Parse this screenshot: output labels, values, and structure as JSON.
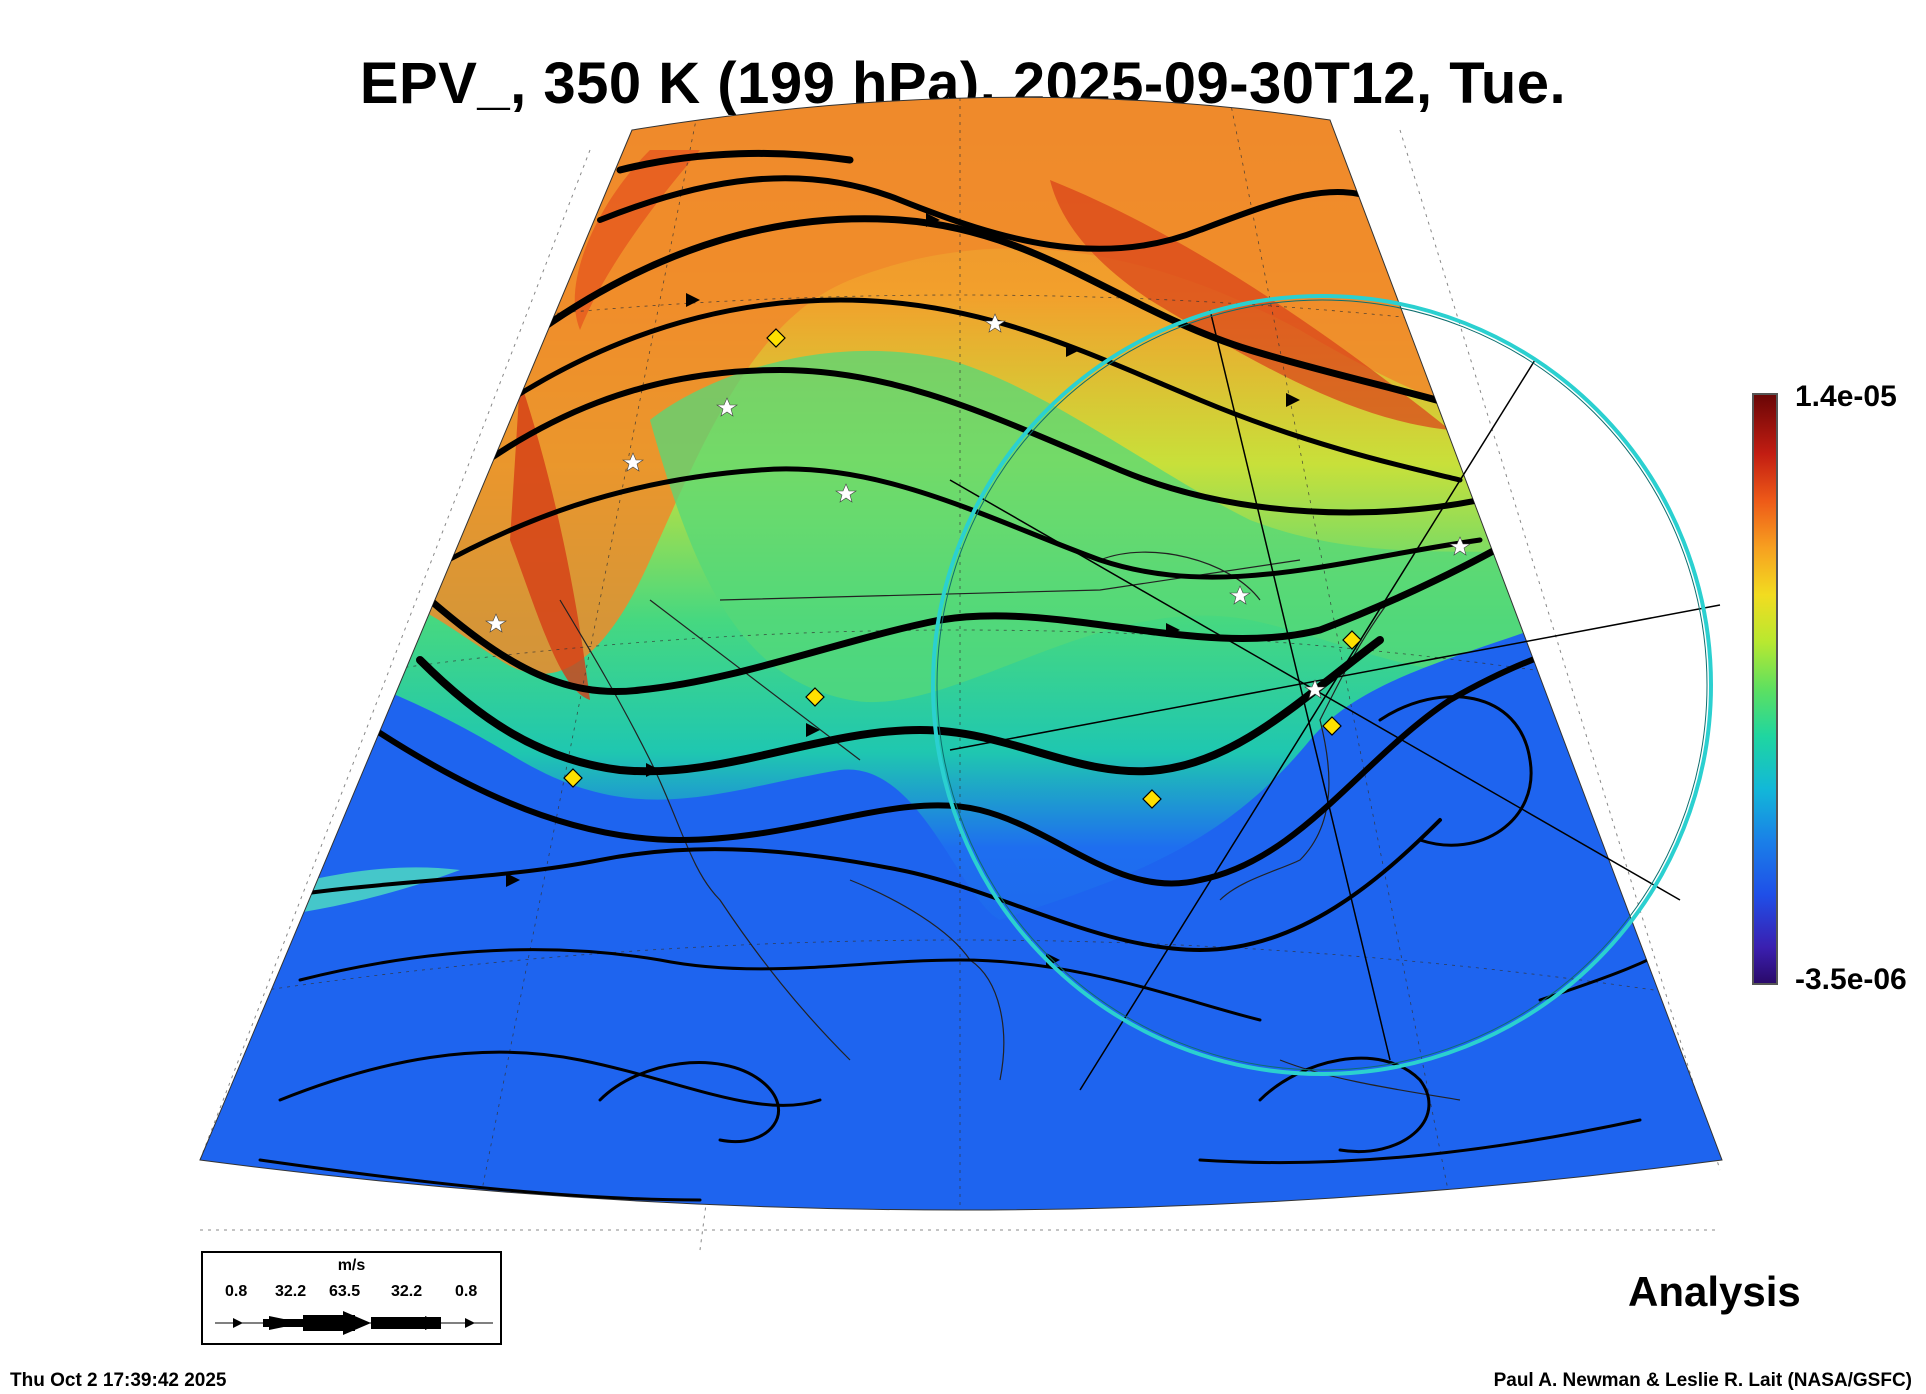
{
  "title": "EPV_, 350 K (199 hPa), 2025-09-30T12, Tue.",
  "colorbar": {
    "max_label": "1.4e-05",
    "min_label": "-3.5e-06",
    "colors": [
      "#2a0a6a",
      "#1f4fe8",
      "#12b8d8",
      "#5ee060",
      "#f2dc20",
      "#ee5a18",
      "#6a0606"
    ]
  },
  "legend": {
    "unit": "m/s",
    "values": [
      "0.8",
      "32.2",
      "63.5",
      "32.2",
      "0.8"
    ]
  },
  "label_analysis": "Analysis",
  "timestamp": "Thu Oct  2 17:39:42 2025",
  "credit": "Paul A. Newman & Leslie R. Lait (NASA/GSFC)",
  "colors": {
    "low_pv": "#1e64ef",
    "high_pv": "#f08a2a",
    "circle": "#2bd0d0",
    "marker": "#ffe000"
  }
}
